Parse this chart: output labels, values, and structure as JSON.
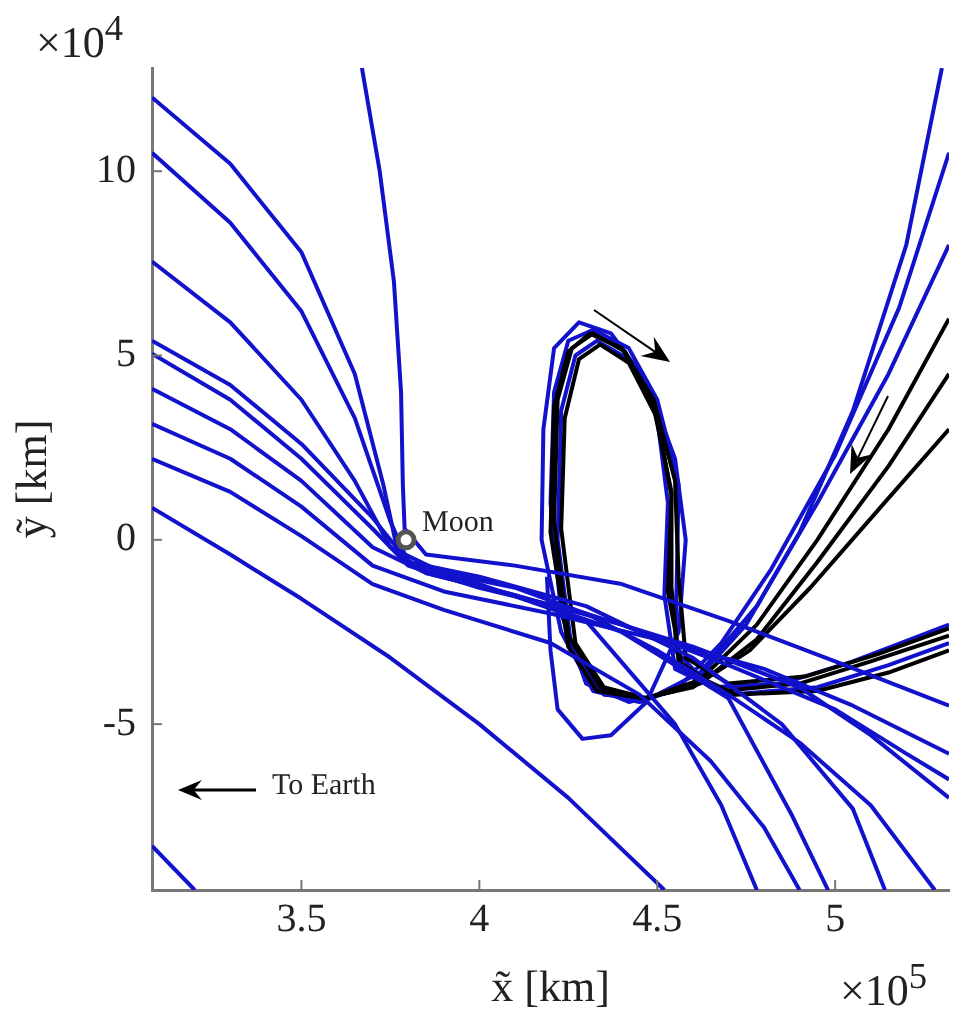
{
  "chart_data": {
    "type": "line",
    "xlabel": "x̃ [km]",
    "ylabel": "ỹ [km]",
    "xlim": [
      3.08,
      5.32
    ],
    "ylim": [
      -9.5,
      12.8
    ],
    "xticks": [
      3.5,
      4,
      4.5,
      5
    ],
    "yticks": [
      -5,
      0,
      5,
      10
    ],
    "grid": false,
    "annotations": [
      "×10$^{4}$",
      "×10$^{5}$",
      "To Earth"
    ],
    "series": [
      {
        "color": "#1212cc",
        "x": [
          3.08,
          3.3,
          3.5,
          3.65,
          3.73,
          3.77,
          3.9,
          4.1,
          4.3,
          4.5,
          4.7,
          4.9,
          5.1,
          5.28
        ],
        "values": [
          12.0,
          10.2,
          7.8,
          4.5,
          1.5,
          -0.3,
          -0.9,
          -1.3,
          -2.0,
          -3.0,
          -4.2,
          -5.5,
          -7.2,
          -9.5
        ]
      },
      {
        "color": "#1212cc",
        "x": [
          3.08,
          3.3,
          3.5,
          3.65,
          3.75,
          3.8,
          4.0,
          4.3,
          4.6,
          4.85,
          5.05,
          5.14
        ],
        "values": [
          10.5,
          8.6,
          6.2,
          3.3,
          0.5,
          -0.6,
          -1.0,
          -1.8,
          -3.2,
          -5.0,
          -7.3,
          -9.5
        ]
      },
      {
        "color": "#1212cc",
        "x": [
          3.08,
          3.3,
          3.5,
          3.65,
          3.75,
          3.85,
          4.1,
          4.4,
          4.7,
          4.88,
          4.98
        ],
        "values": [
          7.55,
          5.9,
          3.8,
          1.6,
          -0.2,
          -0.9,
          -1.5,
          -2.5,
          -4.3,
          -7.5,
          -9.5
        ]
      },
      {
        "color": "#1212cc",
        "x": [
          3.08,
          3.3,
          3.5,
          3.7,
          3.8,
          4.0,
          4.3,
          4.55,
          4.68,
          4.78
        ],
        "values": [
          5.4,
          4.2,
          2.6,
          0.6,
          -0.6,
          -1.2,
          -2.2,
          -5.0,
          -7.2,
          -9.5
        ]
      },
      {
        "color": "#1212cc",
        "x": [
          3.08,
          3.3,
          3.5,
          3.7,
          3.8,
          4.0,
          4.3,
          4.6,
          4.9,
          5.1,
          5.32
        ],
        "values": [
          5.05,
          3.8,
          2.2,
          0.3,
          -0.7,
          -1.3,
          -2.0,
          -2.9,
          -4.0,
          -5.3,
          -7.0
        ]
      },
      {
        "color": "#1212cc",
        "x": [
          3.08,
          3.3,
          3.5,
          3.7,
          3.85,
          4.1,
          4.4,
          4.7,
          5.0,
          5.2,
          5.32
        ],
        "values": [
          4.1,
          3.0,
          1.6,
          -0.2,
          -0.9,
          -1.5,
          -2.3,
          -3.4,
          -4.6,
          -5.8,
          -6.5
        ]
      },
      {
        "color": "#1212cc",
        "x": [
          3.08,
          3.3,
          3.5,
          3.7,
          3.9,
          4.2,
          4.5,
          4.8,
          5.05,
          5.32
        ],
        "values": [
          3.15,
          2.2,
          0.9,
          -0.7,
          -1.4,
          -2.0,
          -2.7,
          -3.5,
          -4.5,
          -5.8
        ]
      },
      {
        "color": "#1212cc",
        "x": [
          3.08,
          3.3,
          3.5,
          3.7,
          3.9,
          4.2,
          4.45,
          4.65,
          4.8,
          4.9
        ],
        "values": [
          2.2,
          1.3,
          0.1,
          -1.2,
          -1.9,
          -2.8,
          -4.2,
          -6.0,
          -7.8,
          -9.5
        ]
      },
      {
        "color": "#1212cc",
        "x": [
          3.08,
          3.3,
          3.5,
          3.75,
          4.0,
          4.25,
          4.52
        ],
        "values": [
          0.87,
          -0.4,
          -1.6,
          -3.2,
          -5.0,
          -7.0,
          -9.5
        ]
      },
      {
        "color": "#1212cc",
        "x": [
          3.67,
          3.72,
          3.76,
          3.78,
          3.785,
          3.79,
          3.85,
          4.1,
          4.4,
          4.7,
          5.0,
          5.32
        ],
        "values": [
          12.8,
          10,
          7,
          4,
          1.5,
          0.3,
          -0.4,
          -0.7,
          -1.2,
          -2.2,
          -3.3,
          -4.5
        ]
      },
      {
        "color": "#1212cc",
        "x": [
          3.08,
          3.2
        ],
        "values": [
          -8.3,
          -9.5
        ]
      },
      {
        "color": "#000000",
        "x": [
          5.32,
          5.15,
          4.95,
          4.78,
          4.62,
          4.47,
          4.34,
          4.25,
          4.21,
          4.22,
          4.26,
          4.32,
          4.41,
          4.49,
          4.54,
          4.54,
          4.56,
          4.68,
          4.9,
          5.1,
          5.32
        ],
        "values": [
          6.0,
          3.0,
          0.0,
          -2.3,
          -3.8,
          -4.3,
          -4.0,
          -2.6,
          0.5,
          3.8,
          5.2,
          5.6,
          5.1,
          3.6,
          1.3,
          -1.3,
          -3.3,
          -4.1,
          -3.9,
          -3.3,
          -2.6
        ]
      },
      {
        "color": "#000000",
        "x": [
          5.32,
          5.15,
          4.95,
          4.78,
          4.62,
          4.47,
          4.35,
          4.27,
          4.23,
          4.24,
          4.28,
          4.34,
          4.42,
          4.5,
          4.54,
          4.53,
          4.57,
          4.72,
          4.95,
          5.15,
          5.32
        ],
        "values": [
          4.5,
          2.0,
          -0.6,
          -2.7,
          -3.9,
          -4.3,
          -4.0,
          -2.8,
          0.3,
          3.3,
          4.9,
          5.3,
          4.8,
          3.3,
          1.2,
          -1.4,
          -3.5,
          -4.2,
          -4.1,
          -3.6,
          -3.0
        ]
      },
      {
        "color": "#000000",
        "x": [
          5.32,
          5.12,
          4.93,
          4.76,
          4.6,
          4.46,
          4.33,
          4.25,
          4.2,
          4.21,
          4.25,
          4.31,
          4.4,
          4.49,
          4.55,
          4.56,
          4.58,
          4.7,
          4.92,
          5.12,
          5.32
        ],
        "values": [
          3.0,
          0.8,
          -1.3,
          -3.0,
          -4.0,
          -4.3,
          -4.1,
          -2.9,
          0.2,
          3.6,
          5.1,
          5.6,
          5.2,
          3.8,
          1.6,
          -1.0,
          -3.2,
          -3.9,
          -3.7,
          -3.1,
          -2.4
        ]
      },
      {
        "color": "#1212cc",
        "x": [
          5.3,
          5.2,
          5.05,
          4.9,
          4.75,
          4.6,
          4.45,
          4.32,
          4.23,
          4.175,
          4.18,
          4.21,
          4.28,
          4.37,
          4.47,
          4.55,
          4.58,
          4.56,
          4.47,
          4.37,
          4.29,
          4.22,
          4.2,
          4.19
        ],
        "values": [
          12.8,
          8.0,
          3.5,
          0.2,
          -2.3,
          -3.9,
          -4.4,
          -4.1,
          -2.5,
          0,
          3,
          5.2,
          5.9,
          5.6,
          4.3,
          2.2,
          0,
          -2.5,
          -4.4,
          -5.3,
          -5.4,
          -4.6,
          -3.0,
          -1.0
        ]
      },
      {
        "color": "#1212cc",
        "x": [
          5.32,
          5.18,
          5.0,
          4.82,
          4.68,
          4.55,
          4.42,
          4.3,
          4.23,
          4.2,
          4.21,
          4.25,
          4.32,
          4.42,
          4.5,
          4.56,
          4.555,
          4.55,
          4.65,
          4.85,
          5.05,
          5.32
        ],
        "values": [
          10.5,
          6.3,
          2.3,
          -0.8,
          -2.8,
          -4.1,
          -4.4,
          -3.9,
          -2.0,
          1.0,
          4.0,
          5.4,
          5.7,
          5.2,
          3.8,
          1.5,
          -1.0,
          -3.0,
          -4.0,
          -3.9,
          -3.3,
          -2.3
        ]
      },
      {
        "color": "#1212cc",
        "x": [
          5.32,
          5.15,
          4.95,
          4.78,
          4.62,
          4.48,
          4.35,
          4.26,
          4.22,
          4.23,
          4.27,
          4.33,
          4.42,
          4.5,
          4.53,
          4.52,
          4.55,
          4.7,
          4.95,
          5.15,
          5.32
        ],
        "values": [
          8.0,
          4.5,
          1.0,
          -1.8,
          -3.6,
          -4.3,
          -4.2,
          -3.0,
          0,
          3.5,
          5.0,
          5.4,
          4.9,
          3.3,
          1.0,
          -1.5,
          -3.5,
          -4.2,
          -4.0,
          -3.4,
          -2.8
        ]
      },
      {
        "type": "scatter",
        "name": "Moon",
        "marker": "circle",
        "color": "#555555",
        "x": [
          3.794
        ],
        "values": [
          0
        ]
      }
    ]
  }
}
